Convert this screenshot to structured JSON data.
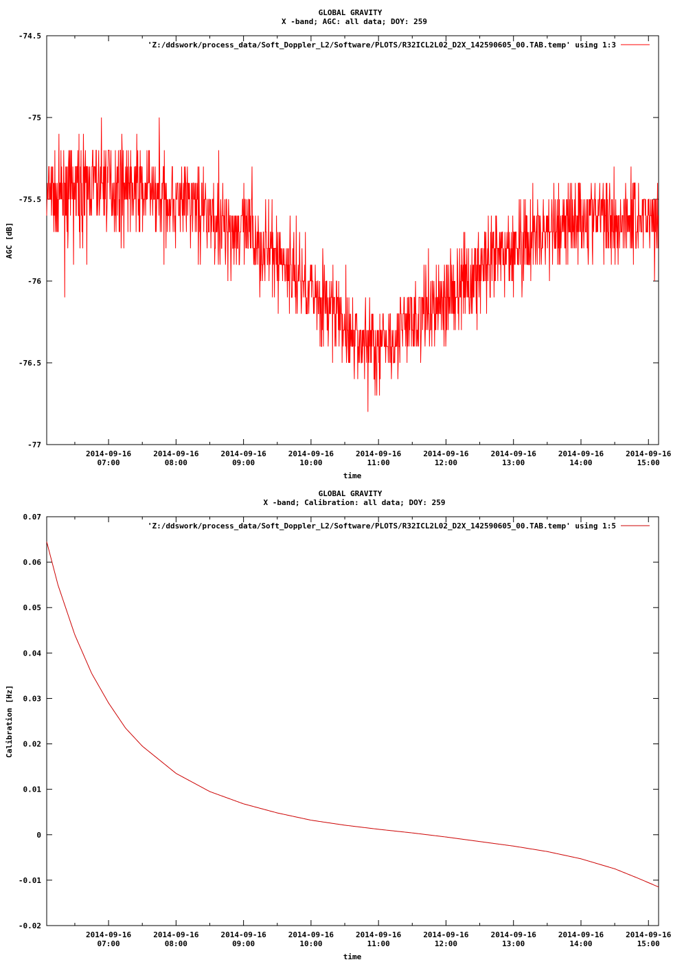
{
  "chart_data": [
    {
      "type": "line",
      "title": "GLOBAL GRAVITY",
      "subtitle": "X -band; AGC: all data; DOY: 259",
      "xlabel": "time",
      "ylabel": "AGC [dB]",
      "ylim": [
        -77,
        -74.5
      ],
      "yticks": [
        "-74.5",
        "-75",
        "-75.5",
        "-76",
        "-76.5",
        "-77"
      ],
      "ytick_values": [
        -74.5,
        -75,
        -75.5,
        -76,
        -76.5,
        -77
      ],
      "xlim": [
        "2014-09-16 06:05",
        "2014-09-16 15:09"
      ],
      "xtick_values": [
        "2014-09-16 07:00",
        "2014-09-16 08:00",
        "2014-09-16 09:00",
        "2014-09-16 10:00",
        "2014-09-16 11:00",
        "2014-09-16 12:00",
        "2014-09-16 13:00",
        "2014-09-16 14:00",
        "2014-09-16 15:00"
      ],
      "xticks_date": [
        "2014-09-16",
        "2014-09-16",
        "2014-09-16",
        "2014-09-16",
        "2014-09-16",
        "2014-09-16",
        "2014-09-16",
        "2014-09-16",
        "2014-09-16"
      ],
      "xticks_time": [
        "07:00",
        "08:00",
        "09:00",
        "10:00",
        "11:00",
        "12:00",
        "13:00",
        "14:00",
        "15:00"
      ],
      "legend": "'Z:/ddswork/process_data/Soft_Doppler_L2/Software/PLOTS/R32ICL2L02_D2X_142590605_00.TAB.temp' using 1:3",
      "legend_position": "top-right",
      "color": "#ff0000",
      "series": [
        {
          "x": [
            "2014-09-16 06:05",
            "2014-09-16 06:30",
            "2014-09-16 07:00",
            "2014-09-16 07:30",
            "2014-09-16 08:00",
            "2014-09-16 08:20",
            "2014-09-16 08:40",
            "2014-09-16 09:00",
            "2014-09-16 09:20",
            "2014-09-16 09:40",
            "2014-09-16 10:00",
            "2014-09-16 10:20",
            "2014-09-16 10:40",
            "2014-09-16 11:00",
            "2014-09-16 11:20",
            "2014-09-16 11:40",
            "2014-09-16 12:00",
            "2014-09-16 12:30",
            "2014-09-16 13:00",
            "2014-09-16 13:30",
            "2014-09-16 14:00",
            "2014-09-16 14:30",
            "2014-09-16 15:09"
          ],
          "values": [
            -75.5,
            -75.45,
            -75.4,
            -75.45,
            -75.5,
            -75.55,
            -75.65,
            -75.7,
            -75.8,
            -75.9,
            -76.05,
            -76.2,
            -76.35,
            -76.4,
            -76.3,
            -76.2,
            -76.1,
            -75.95,
            -75.8,
            -75.7,
            -75.6,
            -75.6,
            -75.6
          ]
        }
      ],
      "noise_amplitude_db": 0.4
    },
    {
      "type": "line",
      "title": "GLOBAL GRAVITY",
      "subtitle": "X -band; Calibration: all data; DOY: 259",
      "xlabel": "time",
      "ylabel": "Calibration [Hz]",
      "ylim": [
        -0.02,
        0.07
      ],
      "yticks": [
        "0.07",
        "0.06",
        "0.05",
        "0.04",
        "0.03",
        "0.02",
        "0.01",
        "0",
        "-0.01",
        "-0.02"
      ],
      "ytick_values": [
        0.07,
        0.06,
        0.05,
        0.04,
        0.03,
        0.02,
        0.01,
        0,
        -0.01,
        -0.02
      ],
      "xlim": [
        "2014-09-16 06:05",
        "2014-09-16 15:09"
      ],
      "xtick_values": [
        "2014-09-16 07:00",
        "2014-09-16 08:00",
        "2014-09-16 09:00",
        "2014-09-16 10:00",
        "2014-09-16 11:00",
        "2014-09-16 12:00",
        "2014-09-16 13:00",
        "2014-09-16 14:00",
        "2014-09-16 15:00"
      ],
      "xticks_date": [
        "2014-09-16",
        "2014-09-16",
        "2014-09-16",
        "2014-09-16",
        "2014-09-16",
        "2014-09-16",
        "2014-09-16",
        "2014-09-16",
        "2014-09-16"
      ],
      "xticks_time": [
        "07:00",
        "08:00",
        "09:00",
        "10:00",
        "11:00",
        "12:00",
        "13:00",
        "14:00",
        "15:00"
      ],
      "legend": "'Z:/ddswork/process_data/Soft_Doppler_L2/Software/PLOTS/R32ICL2L02_D2X_142590605_00.TAB.temp' using 1:5",
      "legend_position": "top-right",
      "color": "#cc0000",
      "series": [
        {
          "x": [
            "2014-09-16 06:05",
            "2014-09-16 06:15",
            "2014-09-16 06:30",
            "2014-09-16 06:45",
            "2014-09-16 07:00",
            "2014-09-16 07:15",
            "2014-09-16 07:30",
            "2014-09-16 08:00",
            "2014-09-16 08:30",
            "2014-09-16 09:00",
            "2014-09-16 09:30",
            "2014-09-16 10:00",
            "2014-09-16 10:30",
            "2014-09-16 11:00",
            "2014-09-16 11:30",
            "2014-09-16 12:00",
            "2014-09-16 12:30",
            "2014-09-16 13:00",
            "2014-09-16 13:30",
            "2014-09-16 14:00",
            "2014-09-16 14:30",
            "2014-09-16 14:50",
            "2014-09-16 15:09"
          ],
          "values": [
            0.0645,
            0.055,
            0.044,
            0.0355,
            0.029,
            0.0235,
            0.0195,
            0.0135,
            0.0095,
            0.0068,
            0.0048,
            0.0032,
            0.0021,
            0.0012,
            0.0004,
            -0.0005,
            -0.0015,
            -0.0025,
            -0.0037,
            -0.0053,
            -0.0075,
            -0.0095,
            -0.0115
          ]
        }
      ]
    }
  ]
}
